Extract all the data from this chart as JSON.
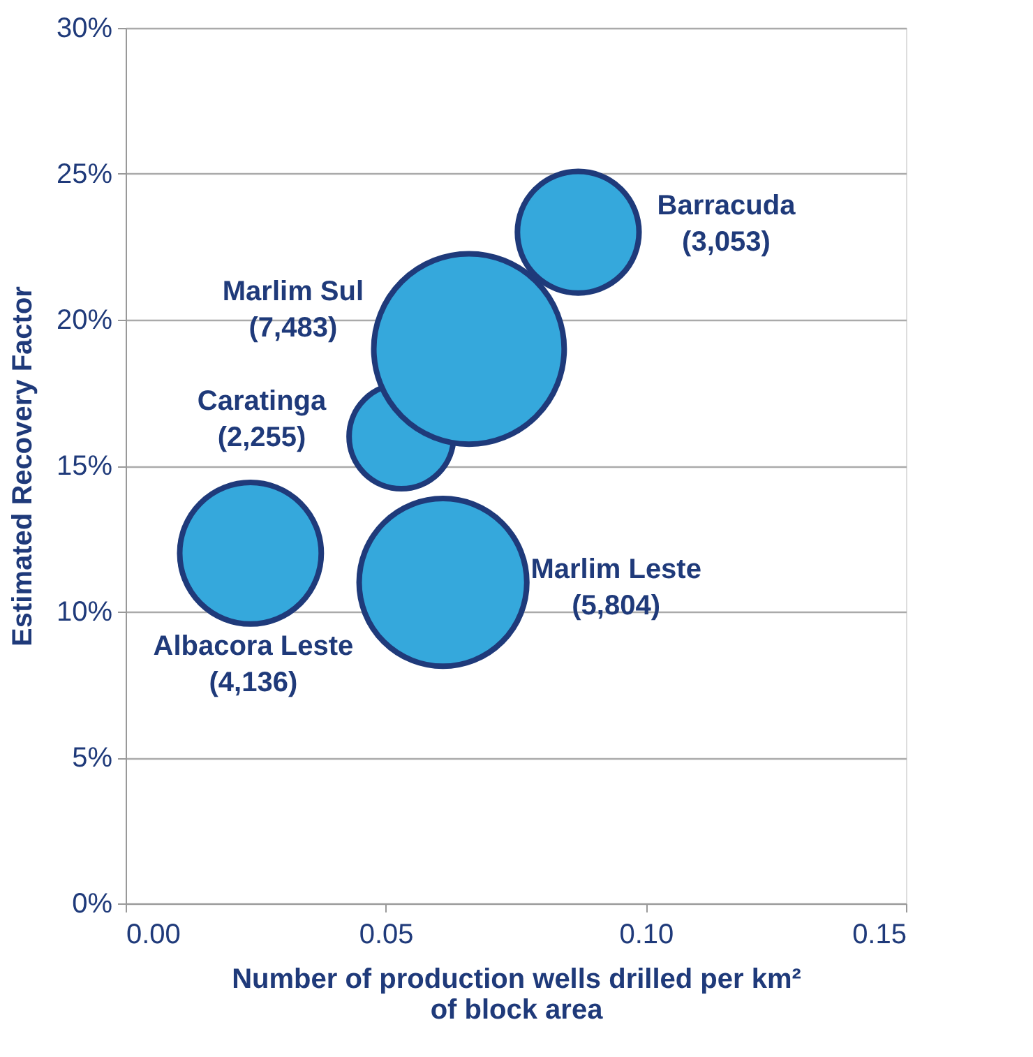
{
  "chart_data": {
    "type": "bubble",
    "xlabel": "Number of production wells drilled per km² of block area",
    "ylabel": "Estimated Recovery Factor",
    "series": [
      {
        "name": "Albacora Leste",
        "color": "#35a8dc",
        "x": [
          0.024
        ],
        "values": [
          12
        ],
        "sizes": [
          4136
        ],
        "value_labels": [
          "(4,136)"
        ]
      },
      {
        "name": "Caratinga",
        "color": "#35a8dc",
        "x": [
          0.053
        ],
        "values": [
          16
        ],
        "sizes": [
          2255
        ],
        "value_labels": [
          "(2,255)"
        ]
      },
      {
        "name": "Marlim Leste",
        "color": "#35a8dc",
        "x": [
          0.061
        ],
        "values": [
          11
        ],
        "sizes": [
          5804
        ],
        "value_labels": [
          "(5,804)"
        ]
      },
      {
        "name": "Marlim Sul",
        "color": "#35a8dc",
        "x": [
          0.066
        ],
        "values": [
          19
        ],
        "sizes": [
          7483
        ],
        "value_labels": [
          "(7,483)"
        ]
      },
      {
        "name": "Barracuda",
        "color": "#35a8dc",
        "x": [
          0.087
        ],
        "values": [
          23
        ],
        "sizes": [
          3053
        ],
        "value_labels": [
          "(3,053)"
        ]
      }
    ],
    "xlim": [
      0,
      0.15
    ],
    "xticks": [
      {
        "value": 0,
        "label": "0.00"
      },
      {
        "value": 0.05,
        "label": "0.05"
      },
      {
        "value": 0.1,
        "label": "0.10"
      },
      {
        "value": 0.15,
        "label": "0.15"
      }
    ],
    "ylim": [
      0,
      30
    ],
    "yticks": [
      {
        "value": 0,
        "label": "0%"
      },
      {
        "value": 5,
        "label": "5%"
      },
      {
        "value": 10,
        "label": "10%"
      },
      {
        "value": 15,
        "label": "15%"
      },
      {
        "value": 20,
        "label": "20%"
      },
      {
        "value": 25,
        "label": "25%"
      },
      {
        "value": 30,
        "label": "30%"
      }
    ],
    "grid": "y"
  }
}
